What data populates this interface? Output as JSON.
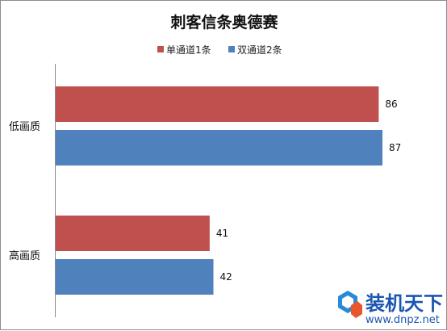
{
  "chart_data": {
    "type": "bar",
    "orientation": "horizontal",
    "title": "刺客信条奥德赛",
    "categories": [
      "低画质",
      "高画质"
    ],
    "series": [
      {
        "name": "单通道1条",
        "color": "#c0504d",
        "values": [
          86,
          41
        ]
      },
      {
        "name": "双通道2条",
        "color": "#4f81bd",
        "values": [
          87,
          42
        ]
      }
    ],
    "xlim": [
      0,
      90
    ],
    "grid": false,
    "legend_position": "top"
  },
  "watermark": {
    "text": "装机天下",
    "url": "www.dnpz.net"
  }
}
